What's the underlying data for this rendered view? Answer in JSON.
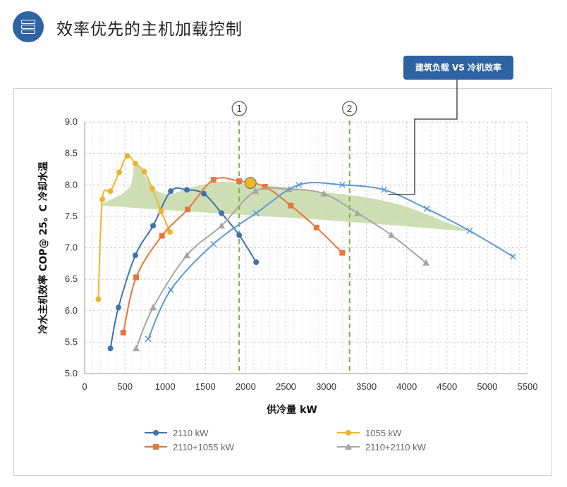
{
  "header": {
    "title": "效率优先的主机加载控制",
    "icon": "server-stack-icon",
    "icon_color": "#2f64a4"
  },
  "callout": {
    "label": "建筑负载 VS 冷机效率",
    "color": "#2d62a3"
  },
  "chart_data": {
    "type": "line",
    "title": "",
    "xlabel": "供冷量 kW",
    "ylabel": "冷水主机效率 COP@ 25。C 冷却水温",
    "xlim": [
      0,
      5500
    ],
    "ylim": [
      5.0,
      9.0
    ],
    "xticks": [
      0,
      500,
      1000,
      1500,
      2000,
      2500,
      3000,
      3500,
      4000,
      4500,
      5000,
      5500
    ],
    "yticks": [
      "5.0",
      "5.5",
      "6.0",
      "6.5",
      "7.0",
      "7.5",
      "8.0",
      "8.5",
      "9.0"
    ],
    "grid": true,
    "legend_position": "bottom",
    "series": [
      {
        "name": "2110 kW",
        "color": "#3f72af",
        "marker": "circle",
        "x": [
          320,
          420,
          630,
          850,
          1070,
          1270,
          1480,
          1700,
          1920,
          2130
        ],
        "y": [
          5.4,
          6.05,
          6.88,
          7.35,
          7.9,
          7.92,
          7.86,
          7.55,
          7.2,
          6.77
        ]
      },
      {
        "name": "1055 kW",
        "color": "#f0b429",
        "marker": "circle",
        "x": [
          170,
          220,
          320,
          430,
          530,
          630,
          740,
          840,
          950,
          1060
        ],
        "y": [
          6.18,
          7.77,
          7.9,
          8.2,
          8.46,
          8.34,
          8.21,
          7.94,
          7.58,
          7.25
        ]
      },
      {
        "name": "2110+1055 kW",
        "color": "#e8763a",
        "marker": "square",
        "x": [
          480,
          640,
          960,
          1280,
          1600,
          1920,
          2240,
          2560,
          2880,
          3200
        ],
        "y": [
          5.65,
          6.53,
          7.19,
          7.61,
          8.08,
          8.06,
          7.97,
          7.67,
          7.32,
          6.92
        ]
      },
      {
        "name": "2110+2110 kW",
        "color": "#a6a6a6",
        "marker": "triangle",
        "x": [
          640,
          850,
          1270,
          1700,
          2120,
          2540,
          2970,
          3390,
          3810,
          4240
        ],
        "y": [
          5.4,
          6.05,
          6.88,
          7.35,
          7.9,
          7.93,
          7.86,
          7.55,
          7.2,
          6.76
        ]
      },
      {
        "name": "",
        "color": "#5b9bd5",
        "marker": "x",
        "x": [
          790,
          1070,
          1600,
          2130,
          2660,
          3200,
          3720,
          4250,
          4780,
          5320
        ],
        "y": [
          5.55,
          6.33,
          7.06,
          7.55,
          8.0,
          8.0,
          7.92,
          7.62,
          7.27,
          6.86
        ]
      }
    ],
    "load_band": {
      "color": "#c5d9a8",
      "upper": {
        "x": [
          220,
          550,
          620,
          700,
          850,
          1050,
          1300,
          1700,
          2100,
          2600,
          3000,
          3500,
          4000,
          4500,
          4750
        ],
        "y": [
          7.7,
          7.95,
          8.35,
          8.25,
          7.95,
          7.85,
          7.95,
          8.05,
          8.0,
          7.95,
          7.88,
          7.8,
          7.65,
          7.4,
          7.28
        ]
      },
      "lower": {
        "x": [
          220,
          1000,
          2000,
          3000,
          4000,
          4750
        ],
        "y": [
          7.67,
          7.6,
          7.52,
          7.44,
          7.34,
          7.26
        ]
      }
    },
    "highlight_point": {
      "x": 2060,
      "y": 8.03,
      "color": "#f0b429"
    },
    "reference_lines": [
      {
        "label": "1",
        "x": 1920,
        "color": "#7ab648"
      },
      {
        "label": "2",
        "x": 3290,
        "color": "#7ab648"
      }
    ],
    "callout_target": {
      "x": 3770,
      "y": 7.85
    }
  }
}
